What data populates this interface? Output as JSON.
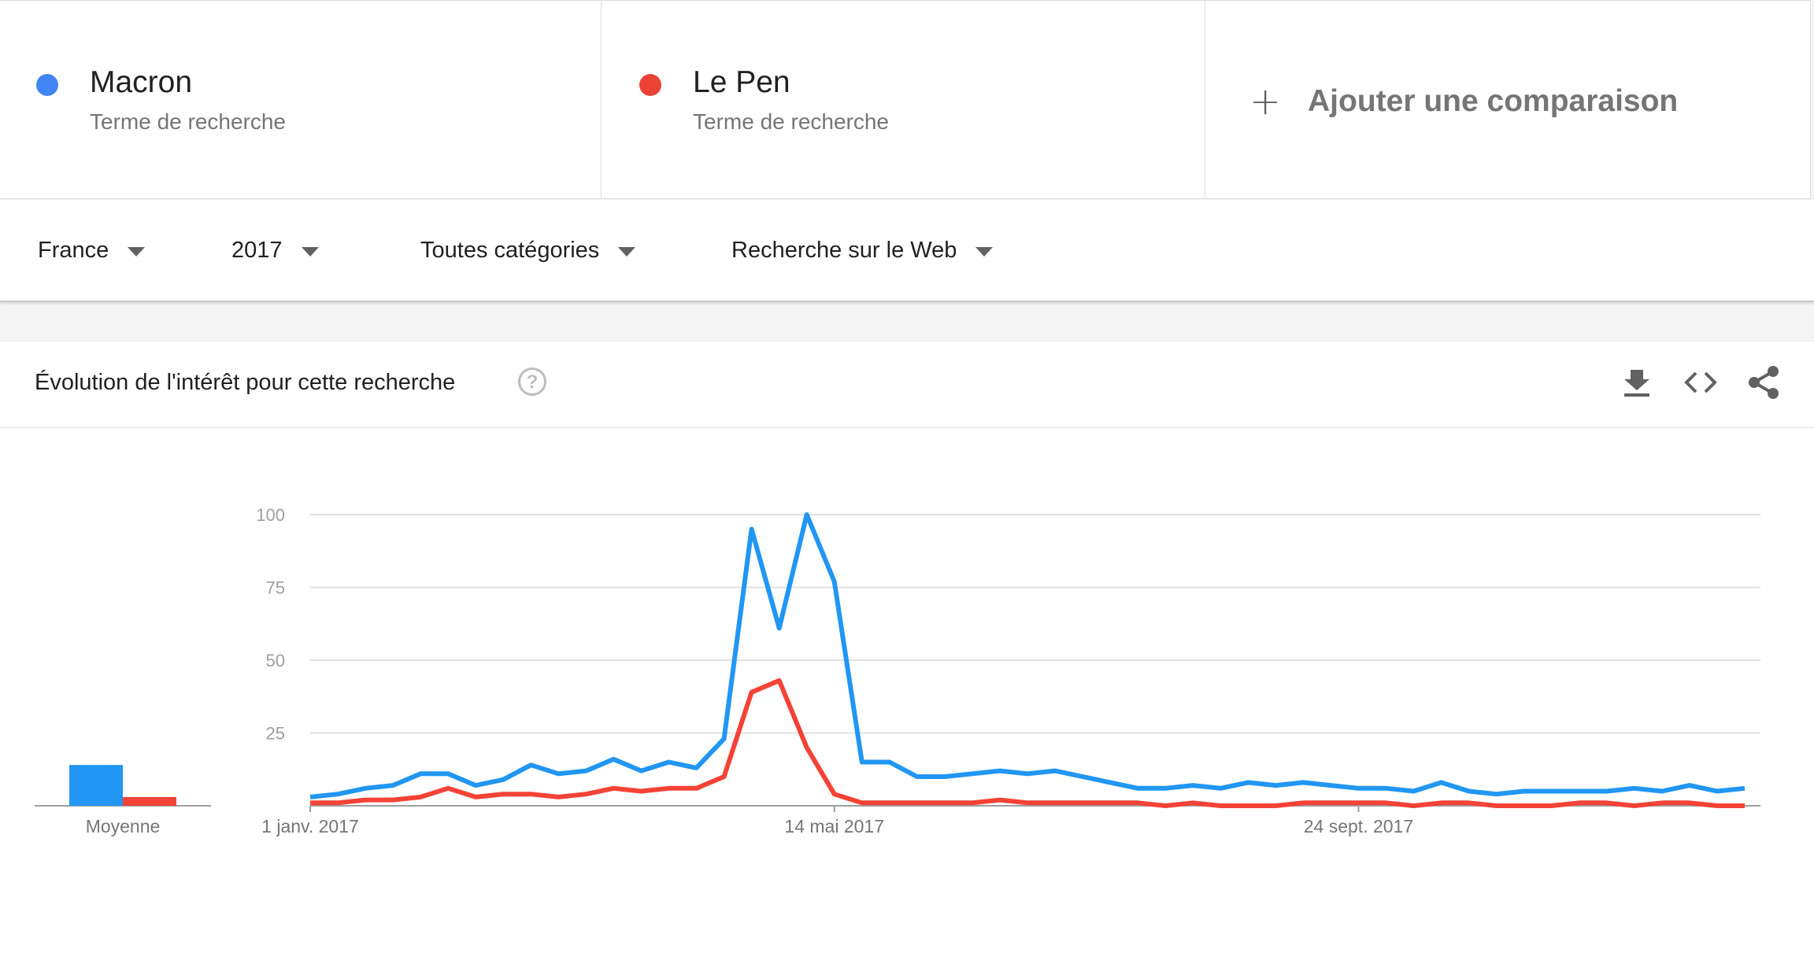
{
  "terms": [
    {
      "name": "Macron",
      "subtitle": "Terme de recherche",
      "color": "#4285f4"
    },
    {
      "name": "Le Pen",
      "subtitle": "Terme de recherche",
      "color": "#ea4335"
    }
  ],
  "add_comparison": "Ajouter une comparaison",
  "filters": {
    "region": "France",
    "period": "2017",
    "category": "Toutes catégories",
    "search_type": "Recherche sur le Web"
  },
  "card": {
    "title": "Évolution de l'intérêt pour cette recherche",
    "help_symbol": "?",
    "tools": [
      "download-icon",
      "embed-icon",
      "share-icon"
    ]
  },
  "chart_data": {
    "type": "line",
    "ylim": [
      0,
      100
    ],
    "y_ticks": [
      25,
      50,
      75,
      100
    ],
    "x_tick_labels": [
      "1 janv. 2017",
      "14 mai 2017",
      "24 sept. 2017"
    ],
    "x_tick_indices": [
      0,
      19,
      38
    ],
    "grid": true,
    "series": [
      {
        "name": "Macron",
        "color": "#2196f3",
        "values": [
          3,
          4,
          6,
          7,
          11,
          11,
          7,
          9,
          14,
          11,
          12,
          16,
          12,
          15,
          13,
          23,
          95,
          61,
          100,
          77,
          15,
          15,
          10,
          10,
          11,
          12,
          11,
          12,
          10,
          8,
          6,
          6,
          7,
          6,
          8,
          7,
          8,
          7,
          6,
          6,
          5,
          8,
          5,
          4,
          5,
          5,
          5,
          5,
          6,
          5,
          7,
          5,
          6
        ]
      },
      {
        "name": "Le Pen",
        "color": "#f44336",
        "values": [
          1,
          1,
          2,
          2,
          3,
          6,
          3,
          4,
          4,
          3,
          4,
          6,
          5,
          6,
          6,
          10,
          39,
          43,
          20,
          4,
          1,
          1,
          1,
          1,
          1,
          2,
          1,
          1,
          1,
          1,
          1,
          0,
          1,
          0,
          0,
          0,
          1,
          1,
          1,
          1,
          0,
          1,
          1,
          0,
          0,
          0,
          1,
          1,
          0,
          1,
          1,
          0,
          0
        ]
      }
    ],
    "average": {
      "label": "Moyenne",
      "values": [
        14,
        3
      ]
    }
  }
}
